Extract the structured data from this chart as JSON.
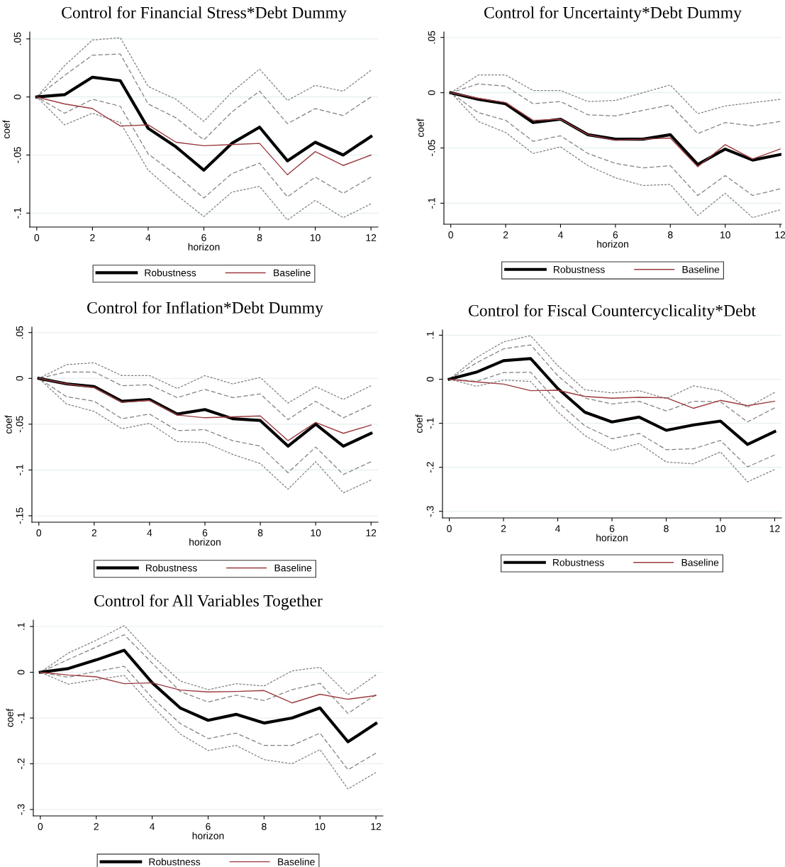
{
  "chart_data": [
    {
      "type": "line",
      "title": "Control for Financial Stress*Debt Dummy",
      "xlabel": "horizon",
      "ylabel": "coef",
      "x": [
        0,
        1,
        2,
        3,
        4,
        5,
        6,
        7,
        8,
        9,
        10,
        11,
        12
      ],
      "xlim": [
        -0.25,
        12.25
      ],
      "xticks": [
        0,
        2,
        4,
        6,
        8,
        10,
        12
      ],
      "ylim": [
        -0.112,
        0.056
      ],
      "yticks": [
        {
          "value": -0.1,
          "label": "-.1"
        },
        {
          "value": -0.05,
          "label": "-.05"
        },
        0,
        {
          "value": 0.05,
          "label": ".05"
        }
      ],
      "grid": "y",
      "legend": "bottom",
      "series": [
        {
          "name": "Robustness",
          "color": "#000000",
          "line_style": "solid",
          "values": [
            0,
            0.002,
            0.017,
            0.014,
            -0.027,
            -0.043,
            -0.063,
            -0.04,
            -0.026,
            -0.055,
            -0.039,
            -0.05,
            -0.034
          ]
        },
        {
          "name": "Baseline",
          "color": "#9b3a3f",
          "line_style": "solid",
          "values": [
            0,
            -0.006,
            -0.01,
            -0.025,
            -0.024,
            -0.039,
            -0.042,
            -0.041,
            -0.04,
            -0.067,
            -0.047,
            -0.059,
            -0.05
          ]
        },
        {
          "color": "#808080",
          "line_style": "dashed",
          "values": [
            0,
            0.0185,
            0.036,
            0.037,
            -0.006,
            -0.018,
            -0.037,
            -0.013,
            0.005,
            -0.023,
            -0.01,
            -0.016,
            0.0
          ]
        },
        {
          "color": "#808080",
          "line_style": "dashed",
          "values": [
            0,
            -0.014,
            -0.002,
            -0.008,
            -0.049,
            -0.067,
            -0.087,
            -0.066,
            -0.057,
            -0.086,
            -0.069,
            -0.083,
            -0.069
          ]
        },
        {
          "color": "#808080",
          "line_style": "dotted",
          "values": [
            0,
            0.027,
            0.049,
            0.051,
            0.009,
            -0.002,
            -0.021,
            0.004,
            0.024,
            -0.003,
            0.01,
            0.005,
            0.023
          ]
        },
        {
          "color": "#808080",
          "line_style": "dotted",
          "values": [
            0,
            -0.024,
            -0.014,
            -0.022,
            -0.063,
            -0.084,
            -0.103,
            -0.082,
            -0.077,
            -0.106,
            -0.089,
            -0.104,
            -0.092
          ]
        }
      ]
    },
    {
      "type": "line",
      "title": "Control for Uncertainty*Debt Dummy",
      "xlabel": "horizon",
      "ylabel": "coef",
      "x": [
        0,
        1,
        2,
        3,
        4,
        5,
        6,
        7,
        8,
        9,
        10,
        11,
        12
      ],
      "xlim": [
        -0.25,
        12.05
      ],
      "xticks": [
        0,
        2,
        4,
        6,
        8,
        10,
        12
      ],
      "ylim": [
        -0.119,
        0.055
      ],
      "yticks": [
        {
          "value": -0.1,
          "label": "-.1"
        },
        {
          "value": -0.05,
          "label": "-.05"
        },
        0,
        {
          "value": 0.05,
          "label": ".05"
        }
      ],
      "grid": "y",
      "legend": "bottom",
      "series": [
        {
          "name": "Robustness",
          "color": "#000000",
          "line_style": "solid",
          "values": [
            0,
            -0.006,
            -0.01,
            -0.027,
            -0.024,
            -0.038,
            -0.042,
            -0.042,
            -0.038,
            -0.065,
            -0.051,
            -0.061,
            -0.056
          ]
        },
        {
          "name": "Baseline",
          "color": "#9b3a3f",
          "line_style": "solid",
          "values": [
            0,
            -0.005,
            -0.009,
            -0.025,
            -0.024,
            -0.038,
            -0.043,
            -0.042,
            -0.041,
            -0.067,
            -0.047,
            -0.06,
            -0.051
          ]
        },
        {
          "color": "#808080",
          "line_style": "dashed",
          "values": [
            0,
            0.008,
            0.006,
            -0.01,
            -0.008,
            -0.02,
            -0.021,
            -0.016,
            -0.011,
            -0.037,
            -0.027,
            -0.03,
            -0.026
          ]
        },
        {
          "color": "#808080",
          "line_style": "dashed",
          "values": [
            0,
            -0.018,
            -0.025,
            -0.044,
            -0.039,
            -0.055,
            -0.064,
            -0.068,
            -0.066,
            -0.093,
            -0.075,
            -0.093,
            -0.087
          ]
        },
        {
          "color": "#808080",
          "line_style": "dotted",
          "values": [
            0,
            0.016,
            0.016,
            0.002,
            0.002,
            -0.008,
            -0.007,
            0.0,
            0.007,
            -0.019,
            -0.012,
            -0.009,
            -0.006
          ]
        },
        {
          "color": "#808080",
          "line_style": "dotted",
          "values": [
            0,
            -0.026,
            -0.036,
            -0.055,
            -0.049,
            -0.066,
            -0.077,
            -0.084,
            -0.083,
            -0.111,
            -0.091,
            -0.113,
            -0.106
          ]
        }
      ]
    },
    {
      "type": "line",
      "title": "Control for Inflation*Debt Dummy",
      "xlabel": "horizon",
      "ylabel": "coef",
      "x": [
        0,
        1,
        2,
        3,
        4,
        5,
        6,
        7,
        8,
        9,
        10,
        11,
        12
      ],
      "xlim": [
        -0.25,
        12.25
      ],
      "xticks": [
        0,
        2,
        4,
        6,
        8,
        10,
        12
      ],
      "ylim": [
        -0.157,
        0.056
      ],
      "yticks": [
        {
          "value": -0.15,
          "label": "-.15"
        },
        {
          "value": -0.1,
          "label": "-.1"
        },
        {
          "value": -0.05,
          "label": "-.05"
        },
        0,
        {
          "value": 0.05,
          "label": ".05"
        }
      ],
      "grid": "y",
      "legend": "bottom",
      "series": [
        {
          "name": "Robustness",
          "color": "#000000",
          "line_style": "solid",
          "values": [
            0,
            -0.006,
            -0.009,
            -0.025,
            -0.023,
            -0.039,
            -0.034,
            -0.044,
            -0.046,
            -0.074,
            -0.05,
            -0.074,
            -0.06
          ]
        },
        {
          "name": "Baseline",
          "color": "#9b3a3f",
          "line_style": "solid",
          "values": [
            0,
            -0.006,
            -0.01,
            -0.026,
            -0.024,
            -0.04,
            -0.043,
            -0.042,
            -0.041,
            -0.068,
            -0.048,
            -0.06,
            -0.051
          ]
        },
        {
          "color": "#808080",
          "line_style": "dashed",
          "values": [
            0,
            0.007,
            0.007,
            -0.008,
            -0.007,
            -0.021,
            -0.012,
            -0.021,
            -0.017,
            -0.045,
            -0.025,
            -0.043,
            -0.029
          ]
        },
        {
          "color": "#808080",
          "line_style": "dashed",
          "values": [
            0,
            -0.02,
            -0.025,
            -0.044,
            -0.039,
            -0.057,
            -0.056,
            -0.068,
            -0.074,
            -0.103,
            -0.075,
            -0.105,
            -0.091
          ]
        },
        {
          "color": "#808080",
          "line_style": "dotted",
          "values": [
            0,
            0.015,
            0.017,
            0.003,
            0.003,
            -0.011,
            0.003,
            -0.006,
            0.001,
            -0.027,
            -0.009,
            -0.023,
            -0.008
          ]
        },
        {
          "color": "#808080",
          "line_style": "dotted",
          "values": [
            0,
            -0.028,
            -0.036,
            -0.055,
            -0.049,
            -0.069,
            -0.07,
            -0.083,
            -0.093,
            -0.121,
            -0.091,
            -0.125,
            -0.111
          ]
        }
      ]
    },
    {
      "type": "line",
      "title": "Control for Fiscal Countercyclicality*Debt",
      "xlabel": "horizon",
      "ylabel": "coef",
      "x": [
        0,
        1,
        2,
        3,
        4,
        5,
        6,
        7,
        8,
        9,
        10,
        11,
        12
      ],
      "xlim": [
        -0.25,
        12.25
      ],
      "xticks": [
        0,
        2,
        4,
        6,
        8,
        10,
        12
      ],
      "ylim": [
        -0.315,
        0.112
      ],
      "yticks": [
        {
          "value": -0.3,
          "label": "-.3"
        },
        {
          "value": -0.2,
          "label": "-.2"
        },
        {
          "value": -0.1,
          "label": "-.1"
        },
        0,
        {
          "value": 0.1,
          "label": ".1"
        }
      ],
      "grid": "y",
      "legend": "bottom",
      "series": [
        {
          "name": "Robustness",
          "color": "#000000",
          "line_style": "solid",
          "values": [
            0,
            0.016,
            0.042,
            0.047,
            -0.021,
            -0.075,
            -0.097,
            -0.086,
            -0.116,
            -0.104,
            -0.095,
            -0.148,
            -0.119
          ]
        },
        {
          "name": "Baseline",
          "color": "#9b3a3f",
          "line_style": "solid",
          "values": [
            0,
            -0.006,
            -0.011,
            -0.026,
            -0.025,
            -0.039,
            -0.043,
            -0.041,
            -0.042,
            -0.066,
            -0.048,
            -0.06,
            -0.05
          ]
        },
        {
          "color": "#808080",
          "line_style": "dashed",
          "values": [
            0,
            0.037,
            0.069,
            0.078,
            0.008,
            -0.043,
            -0.056,
            -0.05,
            -0.072,
            -0.05,
            -0.051,
            -0.097,
            -0.065
          ]
        },
        {
          "color": "#808080",
          "line_style": "dashed",
          "values": [
            0,
            -0.005,
            0.015,
            0.016,
            -0.052,
            -0.106,
            -0.135,
            -0.123,
            -0.16,
            -0.158,
            -0.139,
            -0.199,
            -0.172
          ]
        },
        {
          "color": "#808080",
          "line_style": "dotted",
          "values": [
            0,
            0.049,
            0.085,
            0.099,
            0.031,
            -0.024,
            -0.031,
            -0.026,
            -0.044,
            -0.015,
            -0.026,
            -0.064,
            -0.03
          ]
        },
        {
          "color": "#808080",
          "line_style": "dotted",
          "values": [
            0,
            -0.016,
            -0.002,
            -0.005,
            -0.074,
            -0.128,
            -0.162,
            -0.146,
            -0.188,
            -0.192,
            -0.165,
            -0.233,
            -0.205
          ]
        }
      ]
    },
    {
      "type": "line",
      "title": "Control for All Variables Together",
      "xlabel": "horizon",
      "ylabel": "coef",
      "x": [
        0,
        1,
        2,
        3,
        4,
        5,
        6,
        7,
        8,
        9,
        10,
        11,
        12
      ],
      "xlim": [
        -0.25,
        12.25
      ],
      "xticks": [
        0,
        2,
        4,
        6,
        8,
        10,
        12
      ],
      "ylim": [
        -0.314,
        0.114
      ],
      "yticks": [
        {
          "value": -0.3,
          "label": "-.3"
        },
        {
          "value": -0.2,
          "label": "-.2"
        },
        {
          "value": -0.1,
          "label": "-.1"
        },
        0,
        {
          "value": 0.1,
          "label": ".1"
        }
      ],
      "grid": "y",
      "legend": "bottom",
      "series": [
        {
          "name": "Robustness",
          "color": "#000000",
          "line_style": "solid",
          "values": [
            0,
            0.008,
            0.027,
            0.048,
            -0.023,
            -0.078,
            -0.105,
            -0.092,
            -0.111,
            -0.1,
            -0.078,
            -0.152,
            -0.112
          ]
        },
        {
          "name": "Baseline",
          "color": "#9b3a3f",
          "line_style": "solid",
          "values": [
            0,
            -0.006,
            -0.01,
            -0.025,
            -0.023,
            -0.039,
            -0.043,
            -0.042,
            -0.04,
            -0.067,
            -0.048,
            -0.059,
            -0.051
          ]
        },
        {
          "color": "#808080",
          "line_style": "dashed",
          "values": [
            0,
            0.028,
            0.055,
            0.082,
            0.02,
            -0.042,
            -0.065,
            -0.05,
            -0.062,
            -0.038,
            -0.024,
            -0.09,
            -0.049
          ]
        },
        {
          "color": "#808080",
          "line_style": "dashed",
          "values": [
            0,
            -0.011,
            0.002,
            0.013,
            -0.056,
            -0.112,
            -0.145,
            -0.133,
            -0.16,
            -0.16,
            -0.133,
            -0.213,
            -0.177
          ]
        },
        {
          "color": "#808080",
          "line_style": "dotted",
          "values": [
            0,
            0.042,
            0.07,
            0.102,
            0.036,
            -0.019,
            -0.038,
            -0.025,
            -0.03,
            0.003,
            0.011,
            -0.049,
            -0.006
          ]
        },
        {
          "color": "#808080",
          "line_style": "dotted",
          "values": [
            0,
            -0.026,
            -0.016,
            -0.007,
            -0.074,
            -0.135,
            -0.171,
            -0.16,
            -0.191,
            -0.2,
            -0.169,
            -0.255,
            -0.219
          ]
        }
      ]
    }
  ]
}
